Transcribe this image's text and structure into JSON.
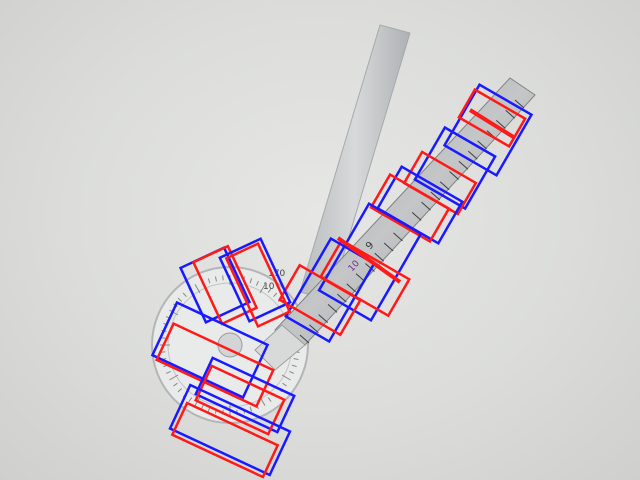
{
  "scene": {
    "description_colors": {
      "background": "#dcdddb",
      "metal": "#c9cbcc",
      "metal_dark": "#8f9294",
      "box_blue": "#1a1aff",
      "box_red": "#ff1a1a"
    },
    "protractor_labels": [
      "170",
      "10"
    ],
    "arm_labels": [
      "10",
      "9",
      "8",
      "7",
      "6",
      "5",
      "4",
      "3",
      "2",
      "1"
    ],
    "purple_label": "10"
  }
}
